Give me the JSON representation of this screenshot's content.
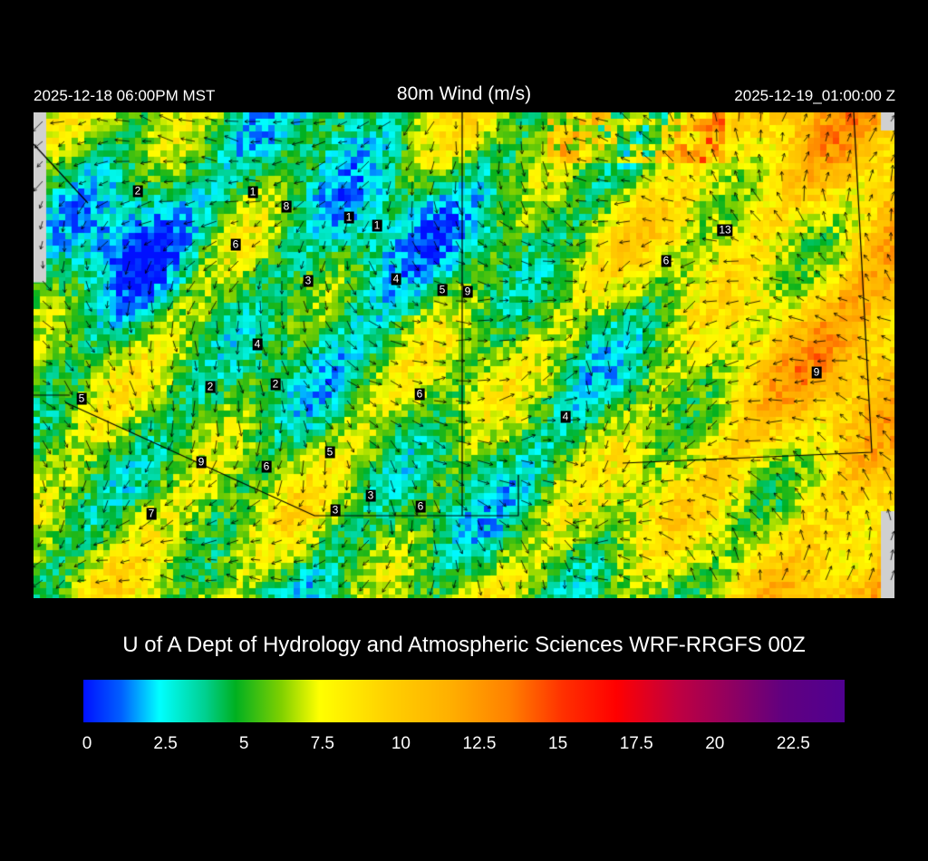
{
  "header": {
    "title": "80m Wind (m/s)",
    "local_time": "2025-12-18 06:00PM MST",
    "utc_time": "2025-12-19_01:00:00 Z"
  },
  "credit": "U of A Dept of Hydrology and Atmospheric Sciences WRF-RRGFS 00Z",
  "colorbar": {
    "ticks": [
      "0",
      "2.5",
      "5",
      "7.5",
      "10",
      "12.5",
      "15",
      "17.5",
      "20",
      "22.5"
    ],
    "min": 0,
    "max": 24.3,
    "units": "m/s"
  },
  "map": {
    "station_labels": [
      "2",
      "1",
      "8",
      "1",
      "1",
      "6",
      "3",
      "4",
      "5",
      "9",
      "13",
      "6",
      "4",
      "2",
      "2",
      "6",
      "5",
      "4",
      "9",
      "5",
      "9",
      "6",
      "3",
      "3",
      "6",
      "7"
    ]
  }
}
